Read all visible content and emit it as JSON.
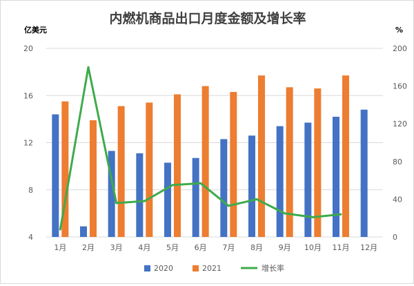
{
  "chart_data": {
    "type": "bar",
    "title": "内燃机商品出口月度金额及增长率",
    "ylabel": "亿美元",
    "y2label": "%",
    "categories": [
      "1月",
      "2月",
      "3月",
      "4月",
      "5月",
      "6月",
      "7月",
      "8月",
      "9月",
      "10月",
      "11月",
      "12月"
    ],
    "ylim": [
      4,
      20
    ],
    "yticks": [
      4,
      8,
      12,
      16,
      20
    ],
    "y2lim": [
      0,
      200
    ],
    "y2ticks": [
      0,
      40,
      80,
      120,
      160,
      200
    ],
    "grid": true,
    "legend_position": "bottom",
    "series": [
      {
        "name": "2020",
        "type": "bar",
        "axis": "left",
        "color": "#4472c4",
        "values": [
          14.4,
          4.9,
          11.3,
          11.1,
          10.3,
          10.7,
          12.3,
          12.6,
          13.4,
          13.7,
          14.2,
          14.8
        ]
      },
      {
        "name": "2021",
        "type": "bar",
        "axis": "left",
        "color": "#ed7d31",
        "values": [
          15.5,
          13.9,
          15.1,
          15.4,
          16.1,
          16.8,
          16.3,
          17.7,
          16.7,
          16.6,
          17.7,
          null
        ]
      },
      {
        "name": "增长率",
        "type": "line",
        "axis": "right",
        "color": "#3dab4a",
        "values": [
          8,
          180,
          36,
          38,
          55,
          57,
          33,
          40,
          25,
          21,
          24,
          null
        ]
      }
    ]
  }
}
